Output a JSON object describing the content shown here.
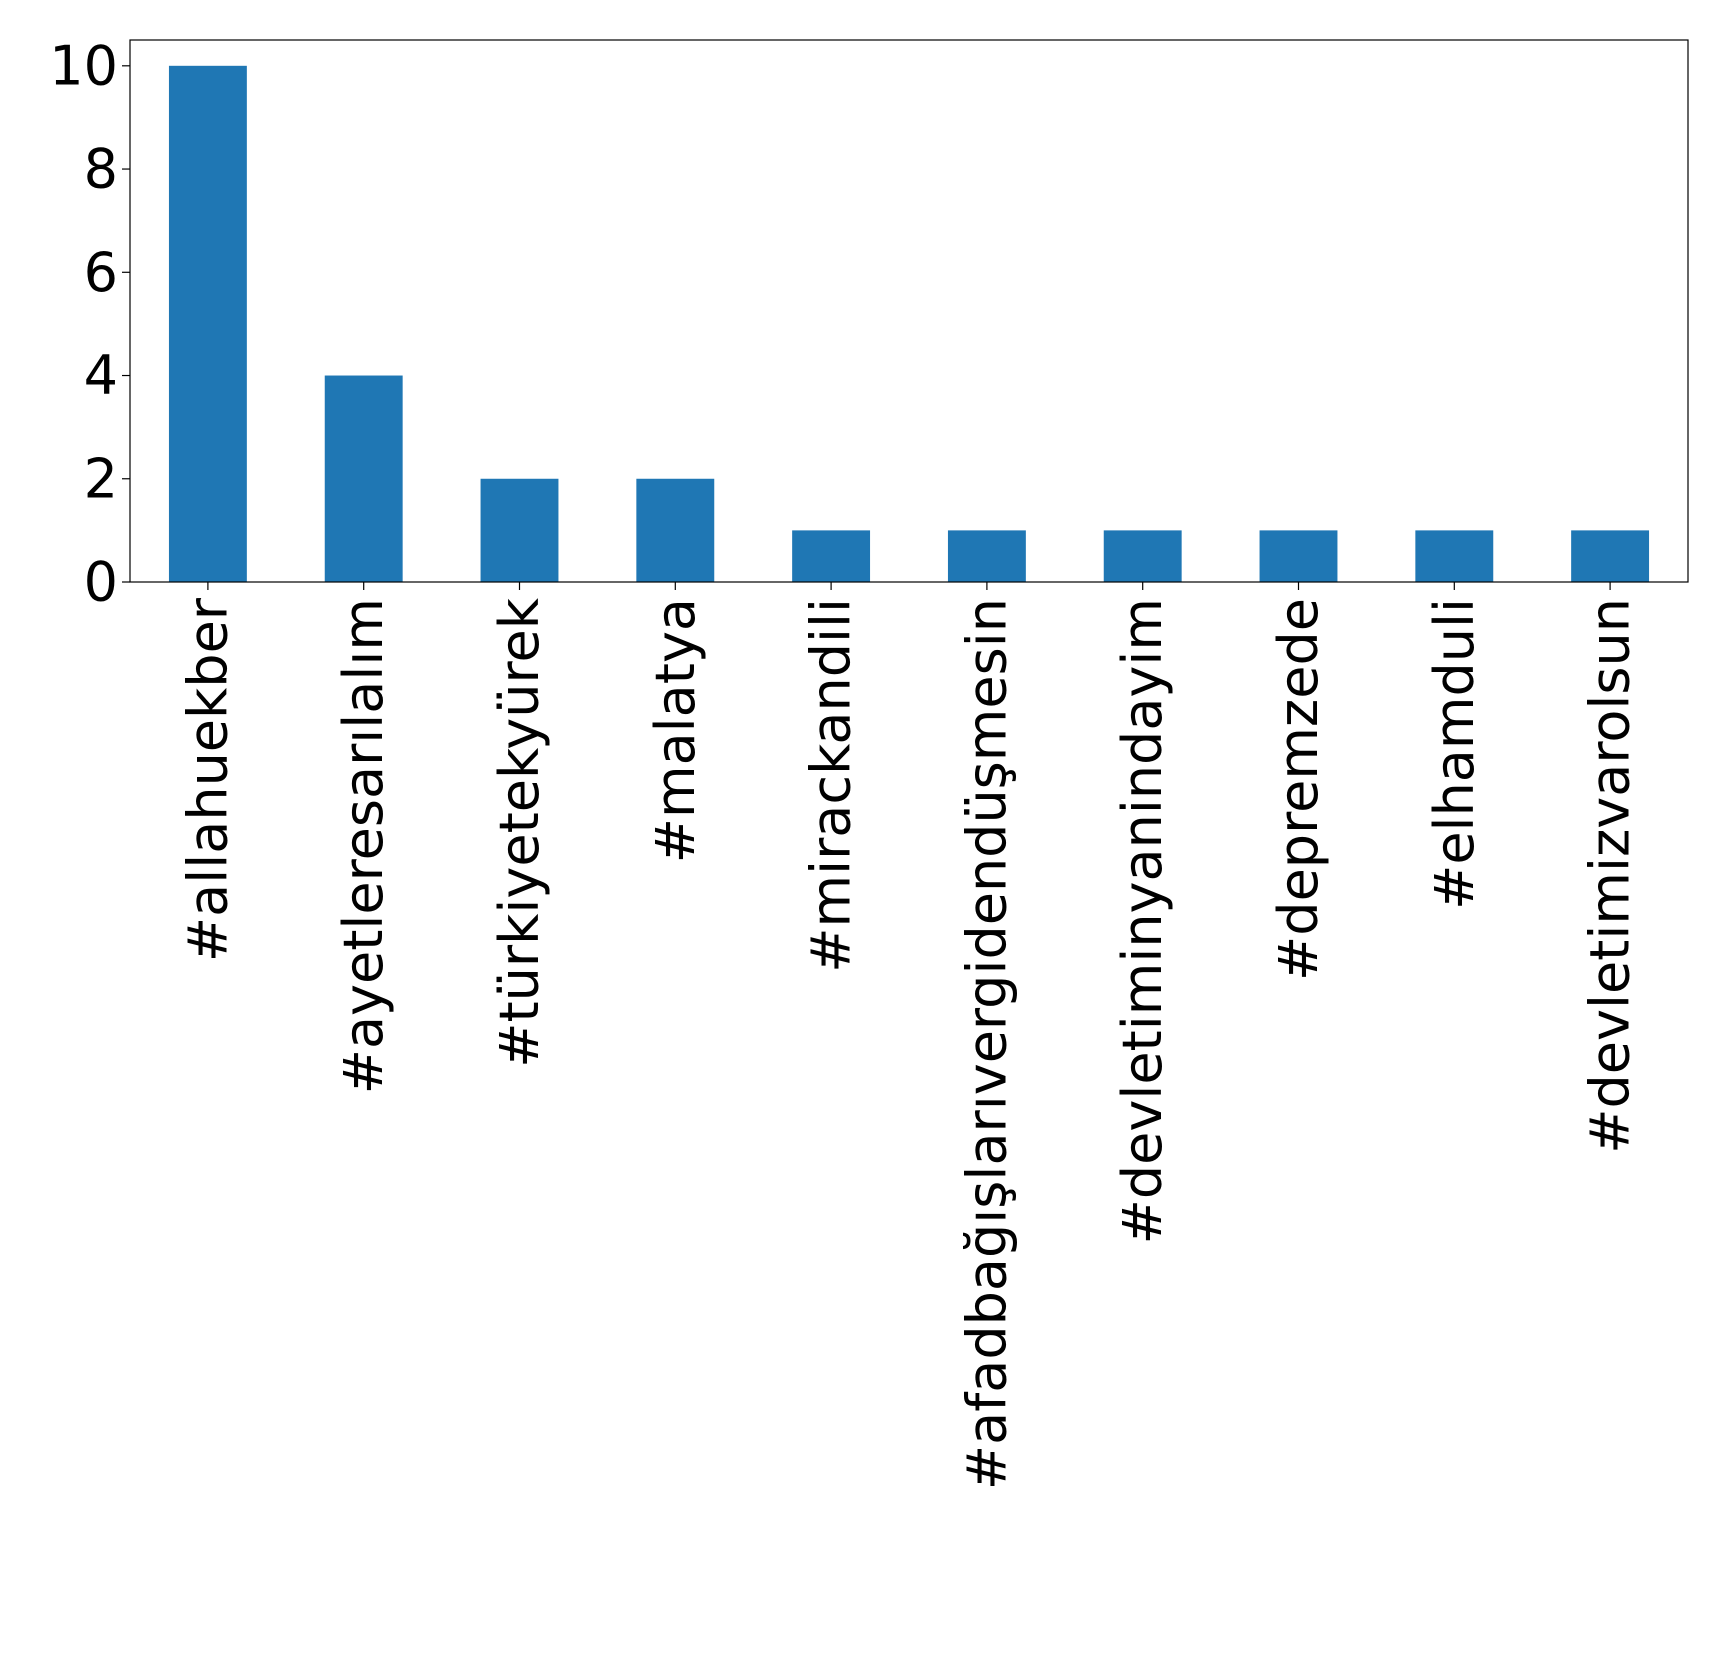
{
  "chart_data": {
    "type": "bar",
    "title": "",
    "xlabel": "",
    "ylabel": "",
    "categories": [
      "#allahuekber",
      "#ayetleresarılalım",
      "#türkiyetekyürek",
      "#malatya",
      "#mirackandili",
      "#afadbağışlarıvergidendüşmesin",
      "#devletiminyanindayim",
      "#depremzede",
      "#elhamduli",
      "#devletimizvarolsun"
    ],
    "values": [
      10,
      4,
      2,
      2,
      1,
      1,
      1,
      1,
      1,
      1
    ],
    "ylim": [
      0,
      10.5
    ],
    "yticks": [
      "0",
      "2",
      "4",
      "6",
      "8",
      "10"
    ],
    "grid": false,
    "bar_color": "#1f77b4"
  }
}
